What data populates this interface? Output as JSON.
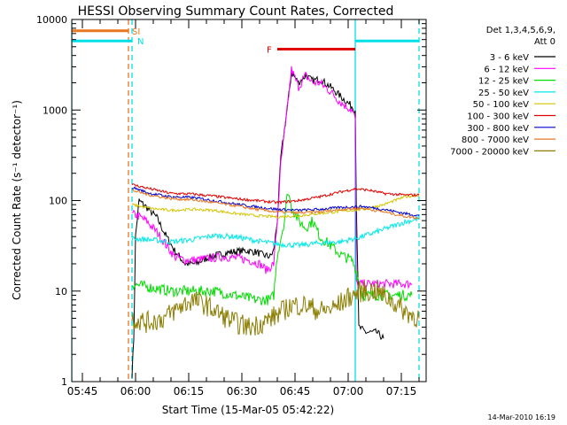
{
  "chart_data": {
    "type": "line",
    "title": "HESSI Observing Summary Count Rates, Corrected",
    "xlabel": "Start Time (15-Mar-05 05:42:22)",
    "ylabel": "Corrected Count Rate (s⁻¹ detector⁻¹)",
    "y_scale": "log",
    "ylim": [
      1,
      10000
    ],
    "xlim_minutes": [
      "05:42",
      "07:22"
    ],
    "x_ticks": [
      "05:45",
      "06:00",
      "06:15",
      "06:30",
      "06:45",
      "07:00",
      "07:15"
    ],
    "y_ticks": [
      "1",
      "10",
      "100",
      "1000",
      "10000"
    ],
    "legend_title": [
      "Det 1,3,4,5,6,9,",
      "Att 0"
    ],
    "legend_position": "right",
    "timestamp": "14-Mar-2010 16:19",
    "flag_labels": {
      "saa": "SI",
      "night": "N",
      "flare": "F"
    },
    "flags": {
      "saa": {
        "color": "#e87722",
        "value": 7500,
        "x_start": "05:42",
        "x_end": "05:58"
      },
      "night": {
        "color": "#00e0e8",
        "value": 5800,
        "segments": [
          [
            "05:42",
            "05:59"
          ],
          [
            "07:02",
            "07:20"
          ]
        ]
      },
      "flare": {
        "color": "#e00000",
        "value": 4700,
        "x_start": "06:40",
        "x_end": "07:02"
      }
    },
    "vertical_lines": [
      {
        "x": "05:42",
        "color": "#00e0e8",
        "style": "solid"
      },
      {
        "x": "05:58",
        "color": "#e87722",
        "style": "dashed"
      },
      {
        "x": "05:59",
        "color": "#00e0e8",
        "style": "dashed"
      },
      {
        "x": "07:02",
        "color": "#00e0e8",
        "style": "solid"
      },
      {
        "x": "07:20",
        "color": "#00e0e8",
        "style": "dashed"
      }
    ],
    "series": [
      {
        "name": "3 - 6 keV",
        "color": "#000000",
        "noise": 0.04,
        "points": [
          [
            "05:59",
            1.2
          ],
          [
            "05:59.5",
            3
          ],
          [
            "06:00",
            40
          ],
          [
            "06:01",
            100
          ],
          [
            "06:03",
            85
          ],
          [
            "06:06",
            65
          ],
          [
            "06:08",
            45
          ],
          [
            "06:11",
            28
          ],
          [
            "06:14",
            20
          ],
          [
            "06:17",
            20
          ],
          [
            "06:20",
            23
          ],
          [
            "06:23",
            25
          ],
          [
            "06:27",
            27
          ],
          [
            "06:31",
            28
          ],
          [
            "06:34",
            27
          ],
          [
            "06:36",
            25
          ],
          [
            "06:38",
            24
          ],
          [
            "06:39",
            28
          ],
          [
            "06:40",
            60
          ],
          [
            "06:41",
            300
          ],
          [
            "06:43",
            1200
          ],
          [
            "06:44",
            2600
          ],
          [
            "06:46",
            2000
          ],
          [
            "06:48",
            2400
          ],
          [
            "06:50",
            2100
          ],
          [
            "06:52",
            2200
          ],
          [
            "06:55",
            1800
          ],
          [
            "06:58",
            1400
          ],
          [
            "07:01",
            1100
          ],
          [
            "07:02",
            1000
          ],
          [
            "07:02.3",
            100
          ],
          [
            "07:03",
            4
          ],
          [
            "07:05",
            3.5
          ],
          [
            "07:08",
            3.5
          ],
          [
            "07:10",
            3
          ]
        ]
      },
      {
        "name": "6 - 12 keV",
        "color": "#ff00ff",
        "noise": 0.05,
        "points": [
          [
            "05:59",
            70
          ],
          [
            "06:00",
            70
          ],
          [
            "06:03",
            60
          ],
          [
            "06:06",
            45
          ],
          [
            "06:08",
            35
          ],
          [
            "06:11",
            24
          ],
          [
            "06:14",
            22
          ],
          [
            "06:17",
            22
          ],
          [
            "06:21",
            23
          ],
          [
            "06:25",
            24
          ],
          [
            "06:29",
            23
          ],
          [
            "06:32",
            22
          ],
          [
            "06:35",
            20
          ],
          [
            "06:37",
            17
          ],
          [
            "06:39",
            20
          ],
          [
            "06:40",
            60
          ],
          [
            "06:41",
            250
          ],
          [
            "06:43",
            1200
          ],
          [
            "06:44",
            2800
          ],
          [
            "06:46",
            1800
          ],
          [
            "06:48",
            2400
          ],
          [
            "06:50",
            2000
          ],
          [
            "06:52",
            2000
          ],
          [
            "06:55",
            1600
          ],
          [
            "06:58",
            1200
          ],
          [
            "07:01",
            1000
          ],
          [
            "07:02",
            800
          ],
          [
            "07:02.3",
            12
          ],
          [
            "07:06",
            12
          ],
          [
            "07:12",
            12
          ],
          [
            "07:18",
            12
          ]
        ]
      },
      {
        "name": "12 - 25 keV",
        "color": "#00dd00",
        "noise": 0.06,
        "points": [
          [
            "05:59",
            12
          ],
          [
            "06:04",
            11
          ],
          [
            "06:10",
            10
          ],
          [
            "06:16",
            10
          ],
          [
            "06:22",
            10
          ],
          [
            "06:28",
            9
          ],
          [
            "06:34",
            8
          ],
          [
            "06:38",
            8
          ],
          [
            "06:39",
            9
          ],
          [
            "06:40",
            25
          ],
          [
            "06:42",
            60
          ],
          [
            "06:43",
            130
          ],
          [
            "06:44",
            85
          ],
          [
            "06:46",
            60
          ],
          [
            "06:48",
            50
          ],
          [
            "06:50",
            60
          ],
          [
            "06:52",
            40
          ],
          [
            "06:55",
            32
          ],
          [
            "06:58",
            25
          ],
          [
            "07:01",
            22
          ],
          [
            "07:02",
            18
          ],
          [
            "07:04",
            9
          ],
          [
            "07:08",
            9
          ],
          [
            "07:12",
            9
          ],
          [
            "07:18",
            9
          ]
        ]
      },
      {
        "name": "25 - 50 keV",
        "color": "#00e8e8",
        "noise": 0.03,
        "points": [
          [
            "05:59",
            38
          ],
          [
            "06:04",
            37
          ],
          [
            "06:10",
            35
          ],
          [
            "06:16",
            37
          ],
          [
            "06:22",
            41
          ],
          [
            "06:28",
            40
          ],
          [
            "06:34",
            36
          ],
          [
            "06:40",
            33
          ],
          [
            "06:46",
            32
          ],
          [
            "06:52",
            34
          ],
          [
            "06:58",
            35
          ],
          [
            "07:04",
            40
          ],
          [
            "07:10",
            48
          ],
          [
            "07:16",
            58
          ],
          [
            "07:20",
            63
          ]
        ]
      },
      {
        "name": "50 - 100 keV",
        "color": "#d4c400",
        "noise": 0.015,
        "points": [
          [
            "05:59",
            90
          ],
          [
            "06:04",
            82
          ],
          [
            "06:10",
            78
          ],
          [
            "06:16",
            80
          ],
          [
            "06:22",
            78
          ],
          [
            "06:28",
            72
          ],
          [
            "06:34",
            68
          ],
          [
            "06:40",
            66
          ],
          [
            "06:46",
            68
          ],
          [
            "06:52",
            72
          ],
          [
            "06:58",
            76
          ],
          [
            "07:04",
            80
          ],
          [
            "07:10",
            90
          ],
          [
            "07:16",
            110
          ],
          [
            "07:20",
            115
          ]
        ]
      },
      {
        "name": "100 - 300 keV",
        "color": "#e00000",
        "noise": 0.015,
        "points": [
          [
            "05:59",
            150
          ],
          [
            "06:04",
            135
          ],
          [
            "06:10",
            120
          ],
          [
            "06:16",
            118
          ],
          [
            "06:22",
            112
          ],
          [
            "06:28",
            105
          ],
          [
            "06:34",
            100
          ],
          [
            "06:40",
            95
          ],
          [
            "06:46",
            100
          ],
          [
            "06:52",
            110
          ],
          [
            "06:58",
            125
          ],
          [
            "07:02",
            135
          ],
          [
            "07:06",
            130
          ],
          [
            "07:10",
            120
          ],
          [
            "07:16",
            115
          ],
          [
            "07:20",
            115
          ]
        ]
      },
      {
        "name": "300 - 800 keV",
        "color": "#0000cc",
        "noise": 0.015,
        "points": [
          [
            "05:59",
            140
          ],
          [
            "06:04",
            120
          ],
          [
            "06:10",
            110
          ],
          [
            "06:16",
            108
          ],
          [
            "06:22",
            100
          ],
          [
            "06:28",
            92
          ],
          [
            "06:34",
            85
          ],
          [
            "06:40",
            80
          ],
          [
            "06:46",
            78
          ],
          [
            "06:52",
            80
          ],
          [
            "06:58",
            84
          ],
          [
            "07:04",
            86
          ],
          [
            "07:10",
            80
          ],
          [
            "07:16",
            72
          ],
          [
            "07:20",
            68
          ]
        ]
      },
      {
        "name": "800 - 7000 keV",
        "color": "#e87722",
        "noise": 0.015,
        "points": [
          [
            "05:59",
            130
          ],
          [
            "06:04",
            115
          ],
          [
            "06:10",
            105
          ],
          [
            "06:16",
            102
          ],
          [
            "06:22",
            95
          ],
          [
            "06:28",
            88
          ],
          [
            "06:34",
            80
          ],
          [
            "06:40",
            75
          ],
          [
            "06:46",
            73
          ],
          [
            "06:52",
            75
          ],
          [
            "06:58",
            80
          ],
          [
            "07:04",
            82
          ],
          [
            "07:10",
            75
          ],
          [
            "07:16",
            67
          ],
          [
            "07:20",
            64
          ]
        ]
      },
      {
        "name": "7000 - 20000 keV",
        "color": "#8b7d00",
        "noise": 0.12,
        "points": [
          [
            "05:59",
            5
          ],
          [
            "06:03",
            4.5
          ],
          [
            "06:08",
            5
          ],
          [
            "06:12",
            6.5
          ],
          [
            "06:16",
            8
          ],
          [
            "06:20",
            7
          ],
          [
            "06:24",
            5.5
          ],
          [
            "06:28",
            4.5
          ],
          [
            "06:32",
            4
          ],
          [
            "06:36",
            4.5
          ],
          [
            "06:40",
            5.5
          ],
          [
            "06:44",
            7
          ],
          [
            "06:48",
            7
          ],
          [
            "06:52",
            6
          ],
          [
            "06:56",
            6.5
          ],
          [
            "07:00",
            8.5
          ],
          [
            "07:04",
            10
          ],
          [
            "07:08",
            10
          ],
          [
            "07:12",
            8
          ],
          [
            "07:16",
            6
          ],
          [
            "07:20",
            5
          ]
        ]
      }
    ]
  }
}
